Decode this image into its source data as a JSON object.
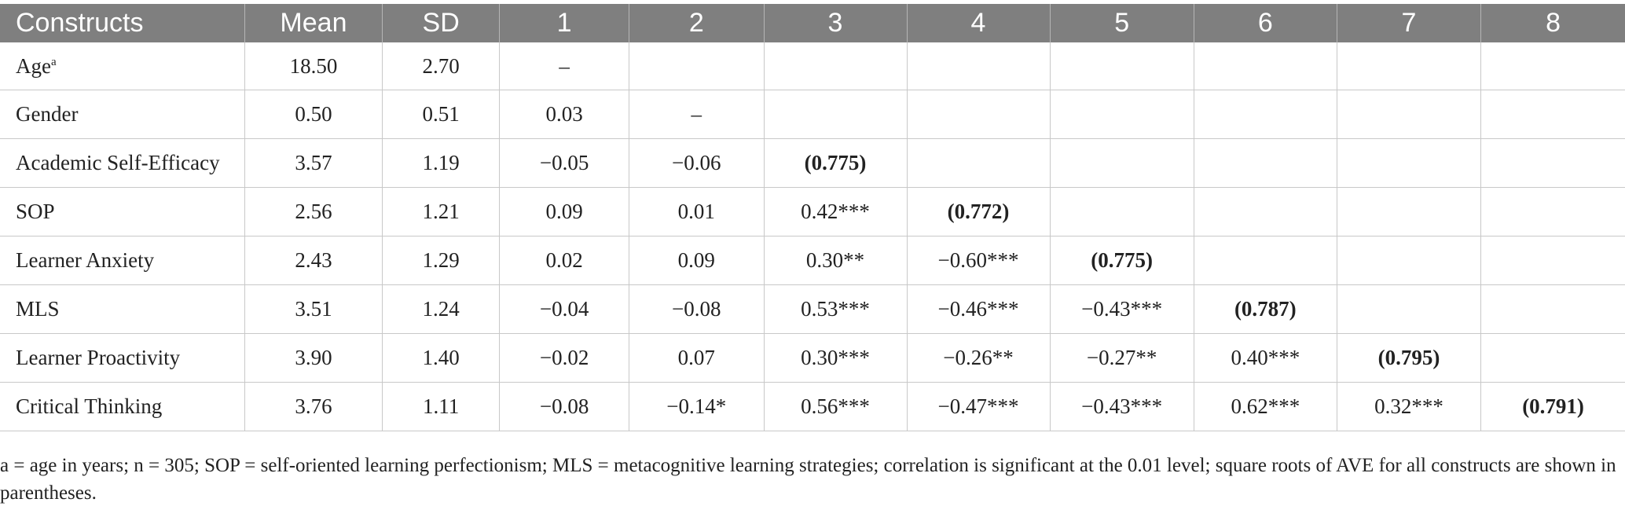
{
  "table": {
    "headers": [
      "Constructs",
      "Mean",
      "SD",
      "1",
      "2",
      "3",
      "4",
      "5",
      "6",
      "7",
      "8"
    ],
    "rows": [
      {
        "construct": "Age",
        "sup": "a",
        "mean": "18.50",
        "sd": "2.70",
        "c1": "–",
        "c2": "",
        "c3": "",
        "c4": "",
        "c5": "",
        "c6": "",
        "c7": "",
        "c8": ""
      },
      {
        "construct": "Gender",
        "sup": "",
        "mean": "0.50",
        "sd": "0.51",
        "c1": "0.03",
        "c2": "–",
        "c3": "",
        "c4": "",
        "c5": "",
        "c6": "",
        "c7": "",
        "c8": ""
      },
      {
        "construct": "Academic Self-Efficacy",
        "sup": "",
        "mean": "3.57",
        "sd": "1.19",
        "c1": "−0.05",
        "c2": "−0.06",
        "c3": "(0.775)",
        "c4": "",
        "c5": "",
        "c6": "",
        "c7": "",
        "c8": ""
      },
      {
        "construct": "SOP",
        "sup": "",
        "mean": "2.56",
        "sd": "1.21",
        "c1": "0.09",
        "c2": "0.01",
        "c3": "0.42***",
        "c4": "(0.772)",
        "c5": "",
        "c6": "",
        "c7": "",
        "c8": ""
      },
      {
        "construct": "Learner Anxiety",
        "sup": "",
        "mean": "2.43",
        "sd": "1.29",
        "c1": "0.02",
        "c2": "0.09",
        "c3": "0.30**",
        "c4": "−0.60***",
        "c5": "(0.775)",
        "c6": "",
        "c7": "",
        "c8": ""
      },
      {
        "construct": "MLS",
        "sup": "",
        "mean": "3.51",
        "sd": "1.24",
        "c1": "−0.04",
        "c2": "−0.08",
        "c3": "0.53***",
        "c4": "−0.46***",
        "c5": "−0.43***",
        "c6": "(0.787)",
        "c7": "",
        "c8": ""
      },
      {
        "construct": "Learner Proactivity",
        "sup": "",
        "mean": "3.90",
        "sd": "1.40",
        "c1": "−0.02",
        "c2": "0.07",
        "c3": "0.30***",
        "c4": "−0.26**",
        "c5": "−0.27**",
        "c6": "0.40***",
        "c7": "(0.795)",
        "c8": ""
      },
      {
        "construct": "Critical Thinking",
        "sup": "",
        "mean": "3.76",
        "sd": "1.11",
        "c1": "−0.08",
        "c2": "−0.14*",
        "c3": "0.56***",
        "c4": "−0.47***",
        "c5": "−0.43***",
        "c6": "0.62***",
        "c7": "0.32***",
        "c8": "(0.791)"
      }
    ]
  },
  "footnote": "a = age in years; n = 305; SOP = self-oriented learning perfectionism; MLS = metacognitive learning strategies; correlation is significant at the 0.01 level; square roots of AVE for all constructs are shown in parentheses.",
  "colors": {
    "header_bg": "#7f7f7f",
    "header_text": "#ffffff",
    "body_text": "#222222",
    "grid": "#c8c8c8"
  }
}
